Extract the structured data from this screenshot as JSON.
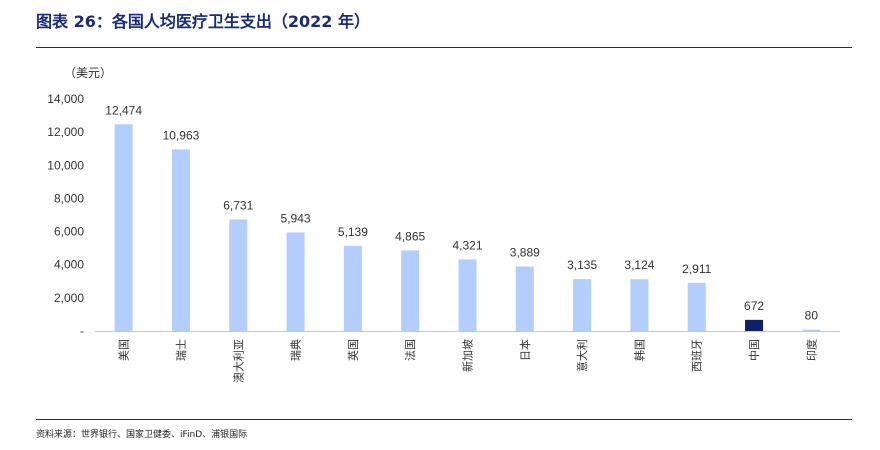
{
  "header": {
    "title": "图表 26：各国人均医疗卫生支出（2022 年）"
  },
  "footer": {
    "source": "资料来源：世界银行、国家卫健委、iFinD、浦银国际"
  },
  "chart_data": {
    "type": "bar",
    "unit_label": "（美元）",
    "categories": [
      "美国",
      "瑞士",
      "澳大利亚",
      "瑞典",
      "英国",
      "法国",
      "新加坡",
      "日本",
      "意大利",
      "韩国",
      "西班牙",
      "中国",
      "印度"
    ],
    "values": [
      12474,
      10963,
      6731,
      5943,
      5139,
      4865,
      4321,
      3889,
      3135,
      3124,
      2911,
      672,
      80
    ],
    "value_labels": [
      "12,474",
      "10,963",
      "6,731",
      "5,943",
      "5,139",
      "4,865",
      "4,321",
      "3,889",
      "3,135",
      "3,124",
      "2,911",
      "672",
      "80"
    ],
    "highlight_category": "中国",
    "colors": {
      "default": "#b3cdfd",
      "highlight": "#0e1f6b",
      "axis": "#c8c8c8",
      "title": "#1a2c79"
    },
    "ylim": [
      0,
      14000
    ],
    "yticks": [
      0,
      2000,
      4000,
      6000,
      8000,
      10000,
      12000,
      14000
    ],
    "ytick_labels": [
      "-",
      "2,000",
      "4,000",
      "6,000",
      "8,000",
      "10,000",
      "12,000",
      "14,000"
    ],
    "grid": false,
    "legend": "none"
  }
}
